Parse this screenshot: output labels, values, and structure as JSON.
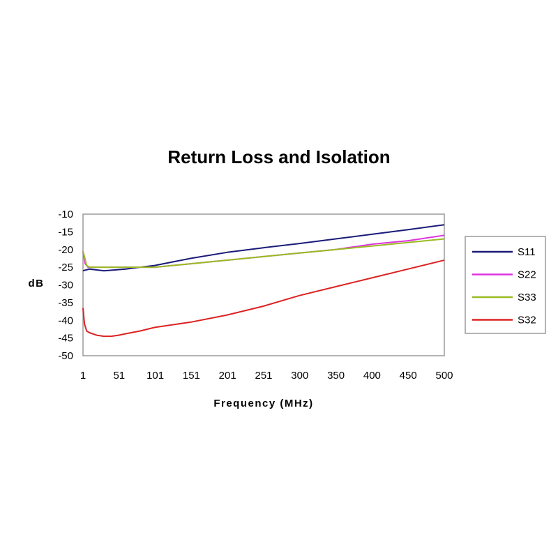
{
  "chart_data": {
    "type": "line",
    "title": "Return Loss and Isolation",
    "xlabel": "Frequency (MHz)",
    "ylabel": "dB",
    "x_ticks": [
      "1",
      "51",
      "101",
      "151",
      "201",
      "251",
      "300",
      "350",
      "400",
      "450",
      "500"
    ],
    "x_range": [
      1,
      500
    ],
    "ylim": [
      -50,
      -10
    ],
    "y_ticks": [
      "-10",
      "-15",
      "-20",
      "-25",
      "-30",
      "-35",
      "-40",
      "-45",
      "-50"
    ],
    "grid": false,
    "legend": "right",
    "series": [
      {
        "name": "S11",
        "color": "#1a1a7a",
        "x": [
          1,
          10,
          30,
          60,
          80,
          100,
          150,
          200,
          250,
          300,
          350,
          400,
          450,
          500
        ],
        "y": [
          -26,
          -25.5,
          -26,
          -25.5,
          -25,
          -24.5,
          -22.5,
          -20.8,
          -19.5,
          -18.3,
          -17,
          -15.7,
          -14.4,
          -13
        ]
      },
      {
        "name": "S22",
        "color": "#e033e0",
        "x": [
          1,
          4,
          8,
          20,
          100,
          150,
          200,
          250,
          300,
          350,
          400,
          450,
          500
        ],
        "y": [
          -20.5,
          -24,
          -25,
          -25,
          -25,
          -24,
          -23,
          -22,
          -21,
          -20,
          -18.5,
          -17.5,
          -16
        ]
      },
      {
        "name": "S33",
        "color": "#99bb22",
        "x": [
          1,
          3,
          6,
          10,
          20,
          100,
          150,
          200,
          250,
          300,
          350,
          400,
          450,
          500
        ],
        "y": [
          -20.5,
          -22,
          -24.5,
          -25,
          -25,
          -25,
          -24,
          -23,
          -22,
          -21,
          -20,
          -19,
          -18,
          -17
        ]
      },
      {
        "name": "S32",
        "color": "#dd2222",
        "x": [
          1,
          3,
          6,
          10,
          20,
          30,
          40,
          50,
          60,
          80,
          100,
          150,
          200,
          250,
          300,
          350,
          400,
          450,
          500
        ],
        "y": [
          -36.5,
          -41,
          -43,
          -43.5,
          -44.2,
          -44.5,
          -44.5,
          -44.2,
          -43.8,
          -43,
          -42,
          -40.5,
          -38.5,
          -36,
          -33,
          -30.5,
          -28,
          -25.5,
          -23
        ]
      }
    ]
  }
}
